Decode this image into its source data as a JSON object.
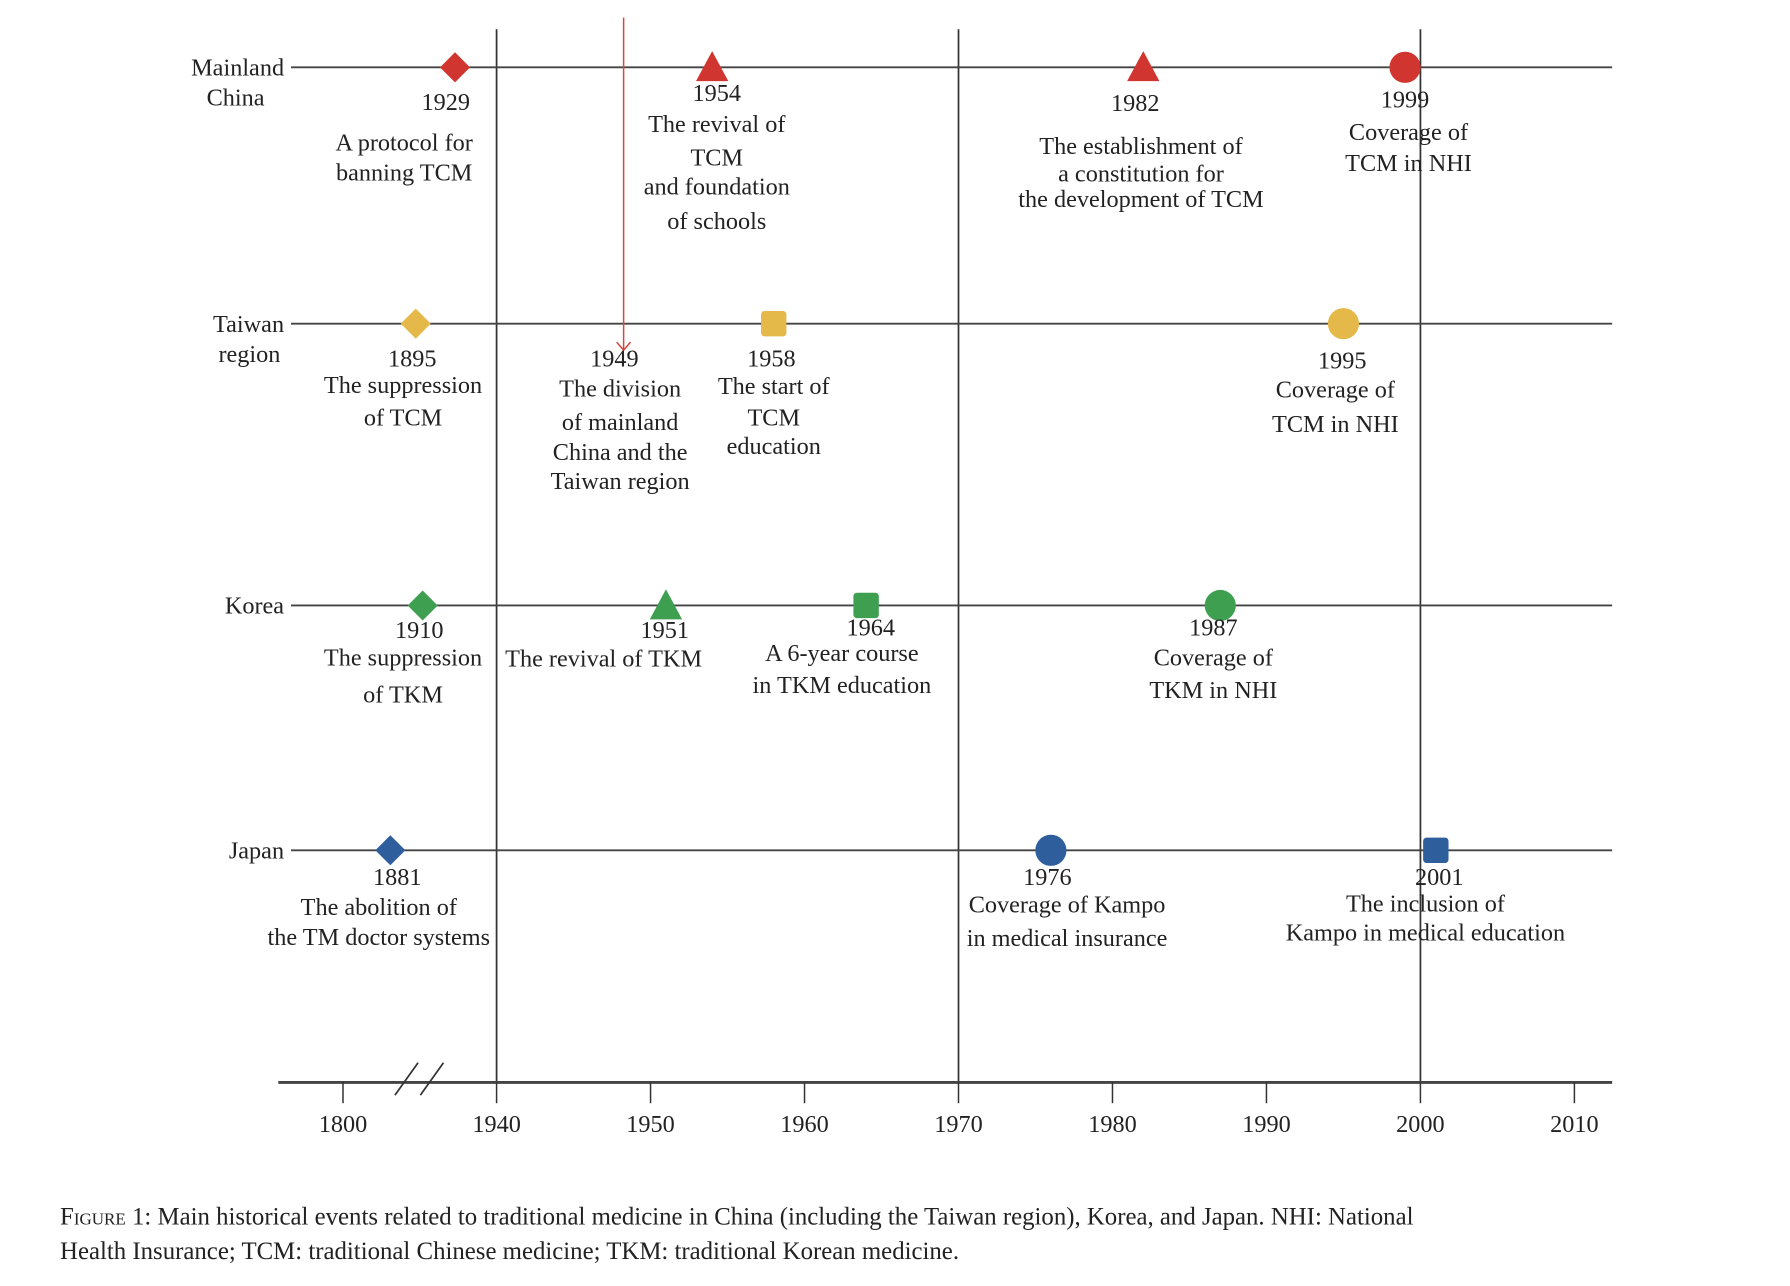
{
  "chart_data": {
    "type": "timeline",
    "title": "",
    "x_axis": {
      "ticks": [
        1800,
        1940,
        1950,
        1960,
        1970,
        1980,
        1990,
        2000,
        2010
      ],
      "axis_break": "between 1800 and 1940",
      "reference_lines": [
        1940,
        1970,
        2000
      ]
    },
    "rows": [
      {
        "label_lines": [
          "Mainland",
          "China"
        ],
        "color": "#d0362f"
      },
      {
        "label_lines": [
          "Taiwan",
          "region"
        ],
        "color": "#e5b84a"
      },
      {
        "label_lines": [
          "Korea"
        ],
        "color": "#3f9f50"
      },
      {
        "label_lines": [
          "Japan"
        ],
        "color": "#2f5e9c"
      }
    ],
    "events": [
      {
        "row": 0,
        "year": 1929,
        "marker": "diamond",
        "lines": [
          "A protocol for",
          "banning TCM"
        ]
      },
      {
        "row": 0,
        "year": 1954,
        "marker": "triangle",
        "lines": [
          "The revival of",
          "TCM",
          "and foundation",
          "of schools"
        ]
      },
      {
        "row": 0,
        "year": 1982,
        "marker": "triangle",
        "lines": [
          "The establishment of",
          "a constitution for",
          "the development of  TCM"
        ]
      },
      {
        "row": 0,
        "year": 1999,
        "marker": "circle",
        "lines": [
          "Coverage of",
          "TCM in NHI"
        ]
      },
      {
        "row": 1,
        "year": 1895,
        "marker": "diamond",
        "lines": [
          "The suppression",
          "of TCM"
        ]
      },
      {
        "row": 1,
        "year": 1949,
        "marker": "arrow",
        "lines": [
          "The division",
          "of mainland",
          "China and the",
          "Taiwan region"
        ],
        "arrow_color": "#d9453f"
      },
      {
        "row": 1,
        "year": 1958,
        "marker": "square",
        "lines": [
          "The start of",
          "TCM",
          "education"
        ]
      },
      {
        "row": 1,
        "year": 1995,
        "marker": "circle",
        "lines": [
          "Coverage of",
          "TCM in NHI"
        ]
      },
      {
        "row": 2,
        "year": 1910,
        "marker": "diamond",
        "lines": [
          "The suppression",
          "of TKM"
        ]
      },
      {
        "row": 2,
        "year": 1951,
        "marker": "triangle",
        "lines": [
          "The revival of TKM"
        ]
      },
      {
        "row": 2,
        "year": 1964,
        "marker": "square",
        "lines": [
          "A 6-year course",
          "in TKM education"
        ]
      },
      {
        "row": 2,
        "year": 1987,
        "marker": "circle",
        "lines": [
          "Coverage of",
          "TKM in NHI"
        ]
      },
      {
        "row": 3,
        "year": 1881,
        "marker": "diamond",
        "lines": [
          "The abolition of",
          "the TM doctor systems"
        ]
      },
      {
        "row": 3,
        "year": 1976,
        "marker": "circle",
        "lines": [
          "Coverage of Kampo",
          "in medical insurance"
        ]
      },
      {
        "row": 3,
        "year": 2001,
        "marker": "square",
        "lines": [
          "The inclusion of",
          "Kampo in medical education"
        ]
      }
    ]
  },
  "caption": {
    "prefix": "Figure 1",
    "line1": ": Main historical events related to traditional medicine in China (including the Taiwan region), Korea, and Japan. NHI: National",
    "line2": "Health Insurance; TCM: traditional Chinese medicine; TKM: traditional Korean medicine."
  }
}
